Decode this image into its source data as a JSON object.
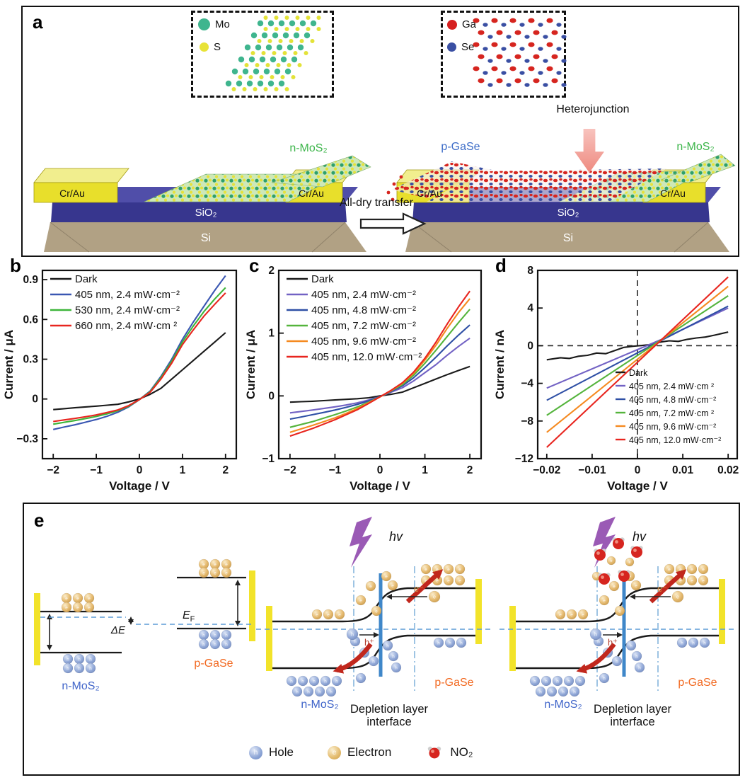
{
  "panel_a": {
    "label": "a",
    "mos2_inset": {
      "items": [
        {
          "label": "Mo",
          "color": "#3fb58e"
        },
        {
          "label": "S",
          "color": "#e8e337"
        }
      ]
    },
    "gase_inset": {
      "items": [
        {
          "label": "Ga",
          "color": "#d6201f"
        },
        {
          "label": "Se",
          "color": "#3a4fa3"
        }
      ]
    },
    "heterojunction": "Heterojunction",
    "transfer": "All-dry transfer",
    "device_left": {
      "electrode_left": "Cr/Au",
      "electrode_right": "Cr/Au",
      "oxide": "SiO₂",
      "substrate": "Si",
      "flake": "n-MoS₂"
    },
    "device_right": {
      "electrode_left": "Cr/Au",
      "electrode_right": "Cr/Au",
      "oxide": "SiO₂",
      "substrate": "Si",
      "flake_left": "p-GaSe",
      "flake_right": "n-MoS₂"
    },
    "colors": {
      "si": "#b1a184",
      "sio2": "#37368e",
      "sio2_top": "#504ea9",
      "electrode": "#e8df2b",
      "electrode_top": "#f1ee8e",
      "mos_label": "#3cb54a",
      "gase_label": "#3b6bc7",
      "hetero_arrow": "#f2a09a"
    }
  },
  "chart_data": [
    {
      "panel": "b",
      "type": "line",
      "xlabel": "Voltage / V",
      "ylabel": "Current / μA",
      "xlim": [
        -2.25,
        2.25
      ],
      "ylim": [
        -0.45,
        0.97
      ],
      "xticks": [
        -2,
        -1,
        0,
        1,
        2
      ],
      "yticks": [
        -0.3,
        0,
        0.3,
        0.6,
        0.9
      ],
      "legend_pos": "top-left",
      "crosshair": false,
      "x": [
        -2,
        -1.75,
        -1.5,
        -1.25,
        -1,
        -0.75,
        -0.5,
        -0.25,
        0,
        0.25,
        0.5,
        0.75,
        1,
        1.25,
        1.5,
        1.75,
        2
      ],
      "series": [
        {
          "name": "Dark",
          "color": "#1a1a1a",
          "y": [
            -0.08,
            -0.073,
            -0.066,
            -0.06,
            -0.054,
            -0.047,
            -0.04,
            -0.022,
            0.0,
            0.035,
            0.08,
            0.15,
            0.22,
            0.29,
            0.36,
            0.43,
            0.5
          ]
        },
        {
          "name": "405 nm, 2.4 mW·cm⁻²",
          "color": "#3a57b2",
          "y": [
            -0.23,
            -0.212,
            -0.195,
            -0.175,
            -0.155,
            -0.13,
            -0.1,
            -0.06,
            -0.005,
            0.06,
            0.17,
            0.3,
            0.45,
            0.58,
            0.7,
            0.82,
            0.93
          ]
        },
        {
          "name": "530 nm, 2.4 mW·cm⁻²",
          "color": "#3db53a",
          "y": [
            -0.19,
            -0.176,
            -0.163,
            -0.148,
            -0.132,
            -0.112,
            -0.088,
            -0.055,
            -0.005,
            0.055,
            0.16,
            0.285,
            0.43,
            0.55,
            0.66,
            0.755,
            0.84
          ]
        },
        {
          "name": "660 nm, 2.4 mW·cm ²",
          "color": "#e8251f",
          "y": [
            -0.17,
            -0.158,
            -0.147,
            -0.134,
            -0.12,
            -0.102,
            -0.082,
            -0.05,
            -0.005,
            0.05,
            0.15,
            0.27,
            0.41,
            0.52,
            0.625,
            0.715,
            0.8
          ]
        }
      ]
    },
    {
      "panel": "c",
      "type": "line",
      "xlabel": "Voltage / V",
      "ylabel": "Current / μA",
      "xlim": [
        -2.25,
        2.25
      ],
      "ylim": [
        -1,
        2
      ],
      "xticks": [
        -2,
        -1,
        0,
        1,
        2
      ],
      "yticks": [
        -1,
        0,
        1,
        2
      ],
      "legend_pos": "top-left",
      "crosshair": false,
      "x": [
        -2,
        -1.75,
        -1.5,
        -1.25,
        -1,
        -0.75,
        -0.5,
        -0.25,
        0,
        0.25,
        0.5,
        0.75,
        1,
        1.25,
        1.5,
        1.75,
        2
      ],
      "series": [
        {
          "name": "Dark",
          "color": "#1a1a1a",
          "y": [
            -0.1,
            -0.092,
            -0.085,
            -0.075,
            -0.065,
            -0.055,
            -0.045,
            -0.03,
            0.0,
            0.025,
            0.06,
            0.13,
            0.2,
            0.27,
            0.34,
            0.405,
            0.47
          ]
        },
        {
          "name": "405 nm, 2.4 mW·cm⁻²",
          "color": "#7262c4",
          "y": [
            -0.27,
            -0.248,
            -0.225,
            -0.2,
            -0.175,
            -0.145,
            -0.11,
            -0.065,
            -0.01,
            0.06,
            0.13,
            0.24,
            0.37,
            0.5,
            0.65,
            0.79,
            0.92
          ]
        },
        {
          "name": "405 nm, 4.8 mW·cm⁻²",
          "color": "#2e4fa5",
          "y": [
            -0.37,
            -0.336,
            -0.3,
            -0.263,
            -0.225,
            -0.182,
            -0.135,
            -0.08,
            -0.01,
            0.07,
            0.16,
            0.29,
            0.45,
            0.62,
            0.8,
            0.97,
            1.13
          ]
        },
        {
          "name": "405 nm, 7.2 mW·cm⁻²",
          "color": "#54b43c",
          "y": [
            -0.5,
            -0.455,
            -0.41,
            -0.355,
            -0.3,
            -0.24,
            -0.175,
            -0.1,
            -0.015,
            0.08,
            0.18,
            0.33,
            0.52,
            0.73,
            0.95,
            1.17,
            1.38
          ]
        },
        {
          "name": "405 nm, 9.6 mW·cm⁻²",
          "color": "#f58a20",
          "y": [
            -0.58,
            -0.525,
            -0.47,
            -0.41,
            -0.35,
            -0.278,
            -0.2,
            -0.11,
            -0.015,
            0.085,
            0.2,
            0.36,
            0.57,
            0.81,
            1.08,
            1.33,
            1.55
          ]
        },
        {
          "name": "405 nm, 12.0 mW·cm⁻²",
          "color": "#e8251f",
          "y": [
            -0.64,
            -0.58,
            -0.52,
            -0.45,
            -0.38,
            -0.3,
            -0.22,
            -0.12,
            -0.015,
            0.09,
            0.21,
            0.38,
            0.6,
            0.86,
            1.15,
            1.42,
            1.67
          ]
        }
      ]
    },
    {
      "panel": "d",
      "type": "line",
      "xlabel": "Voltage / V",
      "ylabel": "Current / nA",
      "xlim": [
        -0.022,
        0.022
      ],
      "ylim": [
        -12,
        8
      ],
      "xticks": [
        -0.02,
        -0.01,
        0,
        0.01,
        0.02
      ],
      "yticks": [
        -12,
        -8,
        -4,
        0,
        4,
        8
      ],
      "legend_pos": "bottom-right",
      "crosshair": true,
      "x": null,
      "series": [
        {
          "name": "Dark",
          "color": "#1a1a1a",
          "x": [
            -0.02,
            -0.017,
            -0.015,
            -0.013,
            -0.011,
            -0.009,
            -0.007,
            -0.005,
            -0.003,
            -0.001,
            0.001,
            0.003,
            0.005,
            0.007,
            0.009,
            0.011,
            0.013,
            0.015,
            0.017,
            0.02
          ],
          "y": [
            -1.5,
            -1.28,
            -1.35,
            -1.12,
            -1.02,
            -0.78,
            -0.85,
            -0.52,
            -0.18,
            -0.06,
            0.02,
            0.12,
            0.38,
            0.52,
            0.46,
            0.68,
            0.82,
            0.92,
            1.12,
            1.45
          ]
        },
        {
          "name": "405 nm, 2.4 mW·cm ²",
          "color": "#7262c4",
          "x": [
            -0.02,
            0.005,
            0.02
          ],
          "y": [
            -4.5,
            0.6,
            4.0
          ]
        },
        {
          "name": "405 nm, 4.8 mW·cm⁻²",
          "color": "#2e4fa5",
          "x": [
            -0.02,
            0.005,
            0.02
          ],
          "y": [
            -5.8,
            0.5,
            4.2
          ]
        },
        {
          "name": "405 nm, 7.2 mW·cm ²",
          "color": "#54b43c",
          "x": [
            -0.02,
            0.005,
            0.02
          ],
          "y": [
            -7.4,
            0.55,
            5.3
          ]
        },
        {
          "name": "405 nm, 9.6 mW·cm⁻²",
          "color": "#f58a20",
          "x": [
            -0.02,
            0.005,
            0.02
          ],
          "y": [
            -9.2,
            0.5,
            6.3
          ]
        },
        {
          "name": "405 nm, 12.0 mW·cm⁻²",
          "color": "#e8251f",
          "x": [
            -0.02,
            0.005,
            0.02
          ],
          "y": [
            -10.8,
            0.5,
            7.3
          ]
        }
      ]
    }
  ],
  "panel_e": {
    "label": "e",
    "delta_e": "ΔE",
    "fermi_main": "E",
    "fermi_sub": "F",
    "hv": "hv",
    "electron_symbol": "e⁻",
    "hole_symbol": "h⁺",
    "n_mos2": "n-MoS₂",
    "p_gase": "p-GaSe",
    "depletion_line1": "Depletion layer",
    "depletion_line2": "interface",
    "hole_letter": "h",
    "electron_letter": "e",
    "legend": {
      "hole": "Hole",
      "electron": "Electron",
      "no2": "NO₂"
    },
    "colors": {
      "hole": "#8ea6d6",
      "electron": "#e9c886",
      "no2": "#d6251f",
      "interface": "#3f87c9",
      "fermi": "#5b9bd5",
      "depletion": "#86b6dc",
      "electrode": "#f2e32a",
      "arrow": "#c1271d",
      "lightning": "#9a5ab5",
      "n_mos2_label": "#3f64c9",
      "p_gase_label": "#f26a22"
    }
  }
}
